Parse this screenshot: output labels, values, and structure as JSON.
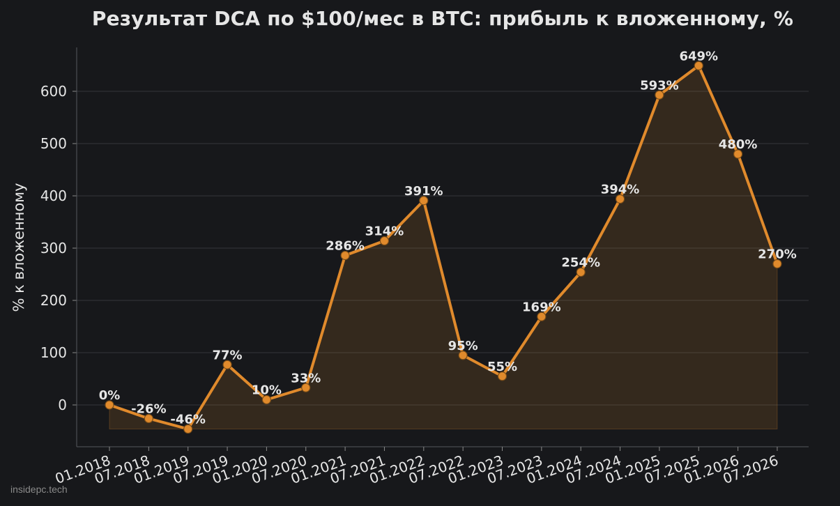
{
  "chart_data": {
    "type": "area",
    "title": "Результат DCA по $100/мес в BTC: прибыль к вложенному, %",
    "xlabel": "",
    "ylabel": "% к вложенному",
    "categories": [
      "01.2018",
      "07.2018",
      "01.2019",
      "07.2019",
      "01.2020",
      "07.2020",
      "01.2021",
      "07.2021",
      "01.2022",
      "07.2022",
      "01.2023",
      "07.2023",
      "01.2024",
      "07.2024",
      "01.2025",
      "07.2025",
      "01.2026",
      "07.2026"
    ],
    "series": [
      {
        "values": [
          0,
          -26,
          -46,
          77,
          10,
          33,
          286,
          314,
          391,
          95,
          55,
          169,
          254,
          394,
          593,
          649,
          480,
          270
        ],
        "labels": [
          "0%",
          "-26%",
          "-46%",
          "77%",
          "10%",
          "33%",
          "286%",
          "314%",
          "391%",
          "95%",
          "55%",
          "169%",
          "254%",
          "394%",
          "593%",
          "649%",
          "480%",
          "270%"
        ]
      }
    ],
    "yticks": [
      0,
      100,
      200,
      300,
      400,
      500,
      600
    ],
    "ylim": [
      -80,
      685
    ],
    "grid": true,
    "colors": {
      "background": "#17181b",
      "line": "#e08a2c",
      "fill": "#3a2a1c",
      "grid": "#34363b",
      "text": "#e6e6e6"
    }
  },
  "watermark": "insidepc.tech"
}
